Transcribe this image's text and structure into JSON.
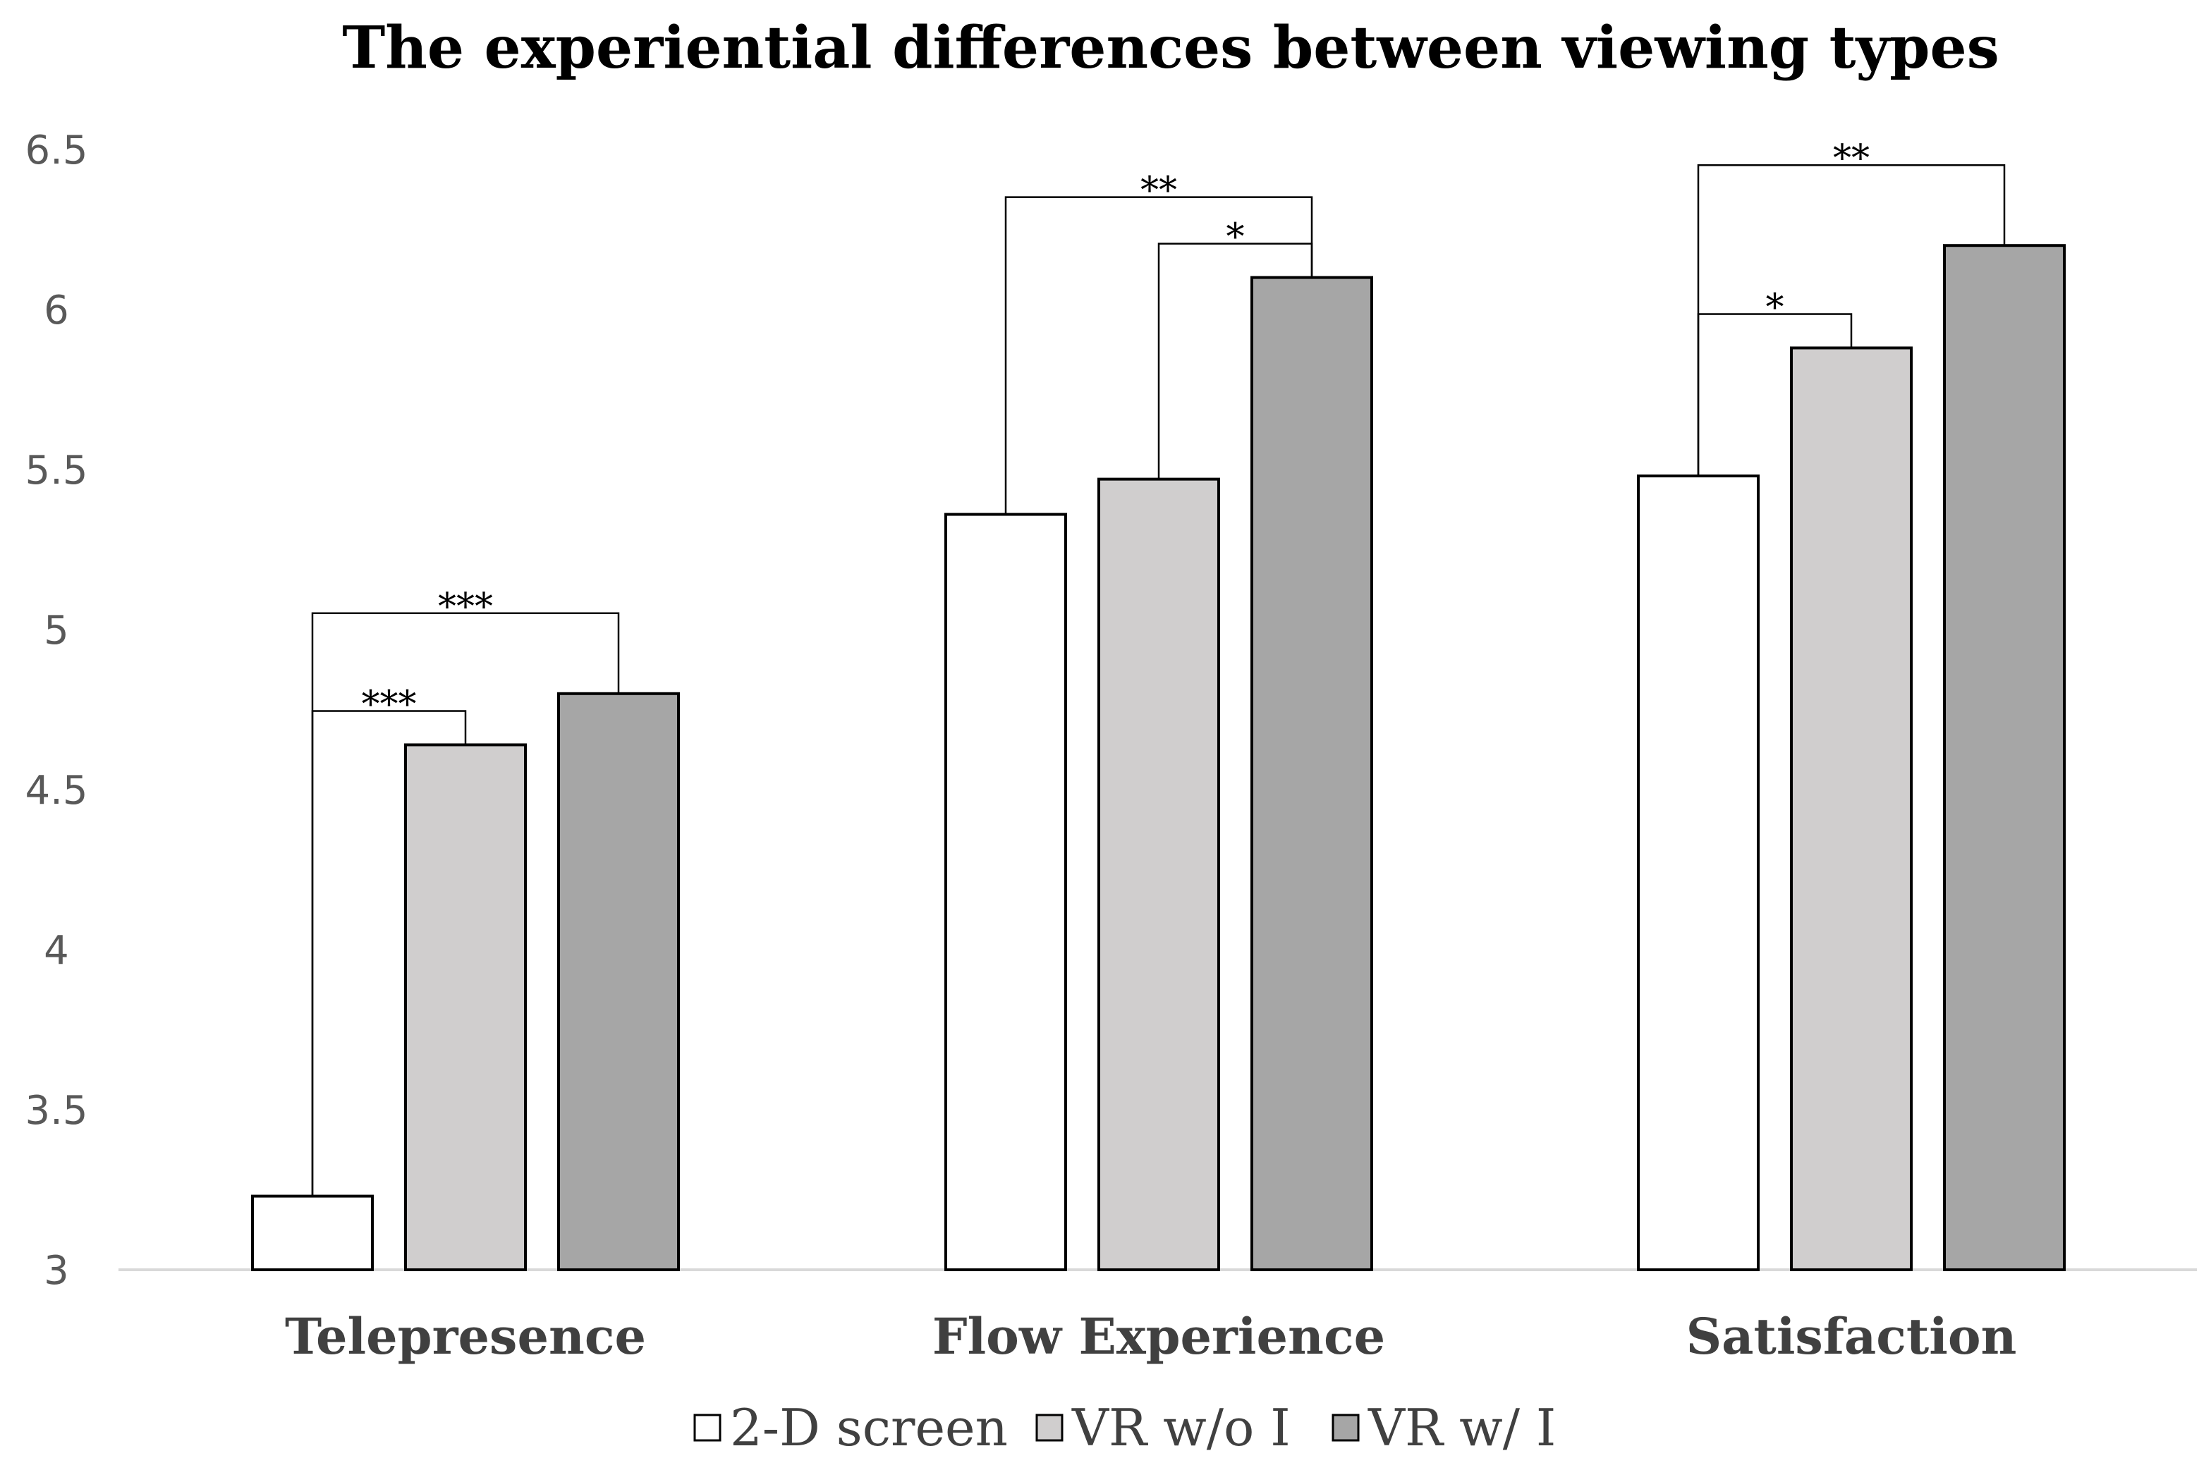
{
  "chart_data": {
    "type": "bar",
    "title": "The experiential differences between viewing types",
    "xlabel": "",
    "ylabel": "",
    "ylim": [
      3,
      6.5
    ],
    "yticks": [
      "3",
      "3.5",
      "4",
      "4.5",
      "5",
      "5.5",
      "6",
      "6.5"
    ],
    "grid": false,
    "legend_position": "bottom",
    "categories": [
      "Telepresence",
      "Flow Experience",
      "Satisfaction"
    ],
    "series": [
      {
        "name": "2-D screen",
        "color": "#ffffff",
        "values": [
          3.23,
          5.36,
          5.48
        ]
      },
      {
        "name": "VR w/o I",
        "color": "#d0cece",
        "values": [
          4.64,
          5.47,
          5.88
        ]
      },
      {
        "name": "VR w/ I",
        "color": "#a6a6a6",
        "values": [
          4.8,
          6.1,
          6.2
        ]
      }
    ],
    "annotations": [
      {
        "category": 0,
        "from_series": 0,
        "to_series": 2,
        "label": "***",
        "level": 2
      },
      {
        "category": 0,
        "from_series": 0,
        "to_series": 1,
        "label": "***",
        "level": 1
      },
      {
        "category": 1,
        "from_series": 0,
        "to_series": 2,
        "label": "**",
        "level": 2
      },
      {
        "category": 1,
        "from_series": 1,
        "to_series": 2,
        "label": "*",
        "level": 1
      },
      {
        "category": 2,
        "from_series": 0,
        "to_series": 2,
        "label": "**",
        "level": 2
      },
      {
        "category": 2,
        "from_series": 0,
        "to_series": 1,
        "label": "*",
        "level": 1
      }
    ]
  }
}
